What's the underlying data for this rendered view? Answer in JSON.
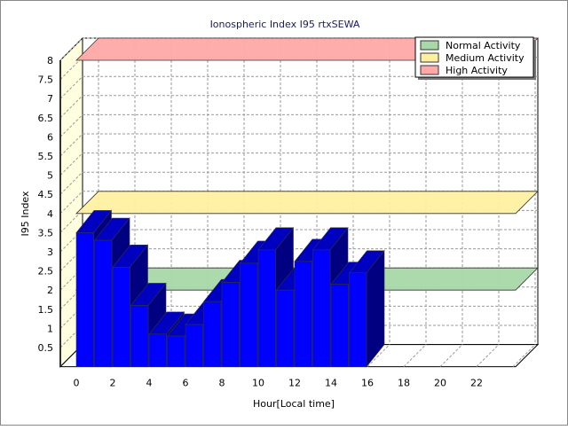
{
  "chart_data": {
    "type": "bar",
    "title": "Ionospheric Index I95 rtxSEWA",
    "xlabel": "Hour[Local time]",
    "ylabel": "I95 Index",
    "xlim": [
      0,
      24
    ],
    "ylim": [
      0,
      8
    ],
    "x_ticks": [
      "0",
      "2",
      "4",
      "6",
      "8",
      "10",
      "12",
      "14",
      "16",
      "18",
      "20",
      "22"
    ],
    "y_ticks": [
      "0.5",
      "1",
      "1.5",
      "2",
      "2.5",
      "3",
      "3.5",
      "4",
      "4.5",
      "5",
      "5.5",
      "6",
      "6.5",
      "7",
      "7.5",
      "8"
    ],
    "grid": true,
    "x": [
      0,
      1,
      2,
      3,
      4,
      5,
      6,
      7,
      8,
      9,
      10,
      11,
      12,
      13,
      14,
      15
    ],
    "values": [
      3.5,
      3.3,
      2.6,
      1.6,
      0.85,
      0.8,
      1.1,
      1.7,
      2.2,
      2.7,
      3.05,
      2.0,
      2.75,
      3.05,
      2.15,
      2.45
    ],
    "bar_color": "#0000ff",
    "thresholds": [
      {
        "name": "Normal Activity",
        "value": 2,
        "color": "#a8d8a8"
      },
      {
        "name": "Medium Activity",
        "value": 4,
        "color": "#fff0a0"
      },
      {
        "name": "High Activity",
        "value": 8,
        "color": "#ffa8a8"
      }
    ],
    "legend_position": "top-right"
  }
}
